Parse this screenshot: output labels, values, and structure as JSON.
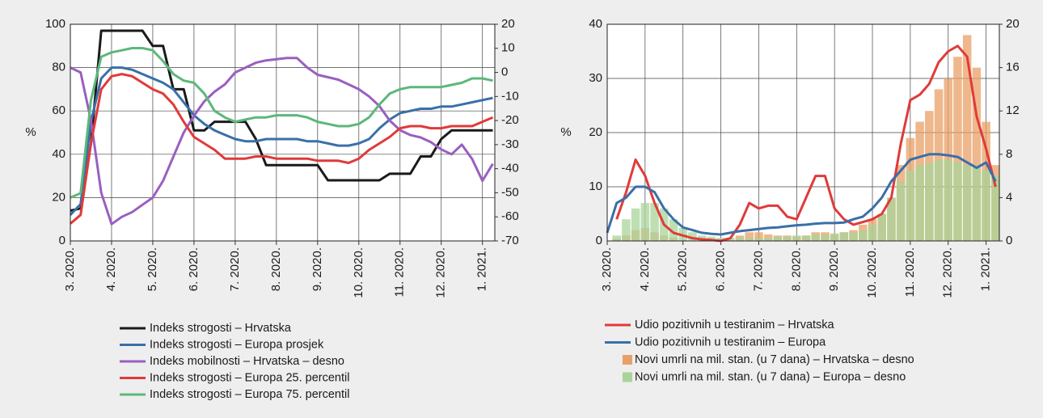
{
  "chart_data": [
    {
      "type": "line",
      "ylabel": "%",
      "ylim": [
        0,
        100
      ],
      "yticks": [
        0,
        20,
        40,
        60,
        80,
        100
      ],
      "y2lim": [
        -70,
        20
      ],
      "y2ticks": [
        -70,
        -60,
        -50,
        -40,
        -30,
        -20,
        -10,
        0,
        10,
        20
      ],
      "xlim": [
        0,
        10.3
      ],
      "grid": true,
      "legend": "bottom",
      "xticks": [
        {
          "value": 0,
          "label": "3. 2020."
        },
        {
          "value": 1,
          "label": "4. 2020."
        },
        {
          "value": 2,
          "label": "5. 2020."
        },
        {
          "value": 3,
          "label": "6. 2020."
        },
        {
          "value": 4,
          "label": "7. 2020."
        },
        {
          "value": 5,
          "label": "8. 2020."
        },
        {
          "value": 6,
          "label": "9. 2020."
        },
        {
          "value": 7,
          "label": "10. 2020."
        },
        {
          "value": 8,
          "label": "11. 2020."
        },
        {
          "value": 9,
          "label": "12. 2020."
        },
        {
          "value": 10,
          "label": "1. 2021."
        }
      ],
      "x": [
        0,
        0.25,
        0.5,
        0.75,
        1,
        1.25,
        1.5,
        1.75,
        2,
        2.25,
        2.5,
        2.75,
        3,
        3.25,
        3.5,
        3.75,
        4,
        4.25,
        4.5,
        4.75,
        5,
        5.25,
        5.5,
        5.75,
        6,
        6.25,
        6.5,
        6.75,
        7,
        7.25,
        7.5,
        7.75,
        8,
        8.25,
        8.5,
        8.75,
        9,
        9.25,
        9.5,
        9.75,
        10,
        10.25
      ],
      "series": [
        {
          "name": "Indeks strogosti – Hrvatska",
          "color": "#1a1a1a",
          "values": [
            14,
            15,
            45,
            97,
            97,
            97,
            97,
            97,
            90,
            90,
            70,
            70,
            51,
            51,
            55,
            55,
            55,
            55,
            47,
            35,
            35,
            35,
            35,
            35,
            35,
            28,
            28,
            28,
            28,
            28,
            28,
            31,
            31,
            31,
            39,
            39,
            47,
            51,
            51,
            51,
            51,
            51
          ]
        },
        {
          "name": "Indeks strogosti – Europa prosjek",
          "color": "#3a6fa8",
          "values": [
            12,
            17,
            55,
            75,
            80,
            80,
            79,
            77,
            75,
            73,
            70,
            64,
            58,
            54,
            51,
            49,
            47,
            46,
            46,
            47,
            47,
            47,
            47,
            46,
            46,
            45,
            44,
            44,
            45,
            47,
            52,
            56,
            59,
            60,
            61,
            61,
            62,
            62,
            63,
            64,
            65,
            66
          ]
        },
        {
          "name": "Indeks mobilnosti – Hrvatska – desno",
          "color": "#9a5fbf",
          "axis": "y2",
          "values": [
            2,
            0,
            -20,
            -50,
            -63,
            -60,
            -58,
            -55,
            -52,
            -45,
            -35,
            -25,
            -18,
            -12,
            -8,
            -5,
            0,
            2,
            4,
            5,
            5.5,
            6,
            6,
            2,
            -1,
            -2,
            -3,
            -5,
            -7,
            -10,
            -14,
            -20,
            -24,
            -26,
            -27,
            -29,
            -32,
            -34,
            -30,
            -36,
            -45,
            -38
          ]
        },
        {
          "name": "Indeks strogosti – Europa 25. percentil",
          "color": "#e03a3a",
          "values": [
            8,
            12,
            45,
            70,
            76,
            77,
            76,
            73,
            70,
            68,
            63,
            55,
            48,
            45,
            42,
            38,
            38,
            38,
            39,
            39,
            38,
            38,
            38,
            38,
            37,
            37,
            37,
            36,
            38,
            42,
            45,
            48,
            52,
            53,
            53,
            52,
            52,
            53,
            53,
            53,
            55,
            57
          ]
        },
        {
          "name": "Indeks strogosti – Europa 75. percentil",
          "color": "#5cb87a",
          "values": [
            20,
            22,
            65,
            85,
            87,
            88,
            89,
            89,
            88,
            83,
            77,
            74,
            73,
            68,
            60,
            57,
            55,
            56,
            57,
            57,
            58,
            58,
            58,
            57,
            55,
            54,
            53,
            53,
            54,
            57,
            63,
            68,
            70,
            71,
            71,
            71,
            71,
            72,
            73,
            75,
            75,
            74
          ]
        }
      ]
    },
    {
      "type": "line",
      "ylabel": "%",
      "ylim": [
        0,
        40
      ],
      "yticks": [
        0,
        10,
        20,
        30,
        40
      ],
      "y2lim": [
        0,
        20
      ],
      "y2ticks": [
        0,
        4,
        8,
        12,
        16,
        20
      ],
      "xlim": [
        0,
        10.35
      ],
      "grid": true,
      "legend": "bottom",
      "xticks": [
        {
          "value": 0,
          "label": "3. 2020."
        },
        {
          "value": 1,
          "label": "4. 2020."
        },
        {
          "value": 2,
          "label": "5. 2020."
        },
        {
          "value": 3,
          "label": "6. 2020."
        },
        {
          "value": 4,
          "label": "7. 2020."
        },
        {
          "value": 5,
          "label": "8. 2020."
        },
        {
          "value": 6,
          "label": "9. 2020."
        },
        {
          "value": 7,
          "label": "10. 2020."
        },
        {
          "value": 8,
          "label": "11. 2020."
        },
        {
          "value": 9,
          "label": "12. 2020."
        },
        {
          "value": 10,
          "label": "1. 2021."
        }
      ],
      "x": [
        0,
        0.25,
        0.5,
        0.75,
        1,
        1.25,
        1.5,
        1.75,
        2,
        2.25,
        2.5,
        2.75,
        3,
        3.25,
        3.5,
        3.75,
        4,
        4.25,
        4.5,
        4.75,
        5,
        5.25,
        5.5,
        5.75,
        6,
        6.25,
        6.5,
        6.75,
        7,
        7.25,
        7.5,
        7.75,
        8,
        8.25,
        8.5,
        8.75,
        9,
        9.25,
        9.5,
        9.75,
        10,
        10.25
      ],
      "series": [
        {
          "name": "Novi umrli  na mil. stan. (u 7 dana) – Hrvatska – desno",
          "type": "bar",
          "axis": "y2",
          "color": "#e9a066",
          "values": [
            0,
            0.2,
            0.5,
            1,
            1.2,
            0.8,
            0.5,
            0.3,
            0.1,
            0,
            0,
            0,
            0,
            0.1,
            0.5,
            0.8,
            0.8,
            0.6,
            0.5,
            0.5,
            0.4,
            0.5,
            0.8,
            0.8,
            0.6,
            0.8,
            1,
            1.5,
            2,
            2.5,
            4,
            7,
            9.5,
            11,
            12,
            14,
            15,
            17,
            19,
            16,
            11,
            7
          ]
        },
        {
          "name": "Novi umrli  na mil. stan. (u 7 dana) – Europa – desno",
          "type": "bar",
          "axis": "y2",
          "color": "#a8d49a",
          "values": [
            0,
            0.5,
            2,
            3,
            3.5,
            3.5,
            3,
            2,
            1.2,
            0.8,
            0.5,
            0.4,
            0.3,
            0.3,
            0.3,
            0.3,
            0.3,
            0.3,
            0.4,
            0.4,
            0.5,
            0.5,
            0.6,
            0.6,
            0.7,
            0.8,
            0.8,
            1,
            1.5,
            2.5,
            4,
            5.5,
            6.5,
            7,
            7.2,
            7.5,
            7.5,
            7.3,
            7,
            7,
            6.5,
            6
          ]
        },
        {
          "name": "Udio pozitivnih u testiranim – Hrvatska",
          "color": "#e03a3a",
          "values": [
            null,
            4,
            9,
            15,
            12,
            7,
            3,
            1.5,
            1,
            0.5,
            0.3,
            0.2,
            0,
            0.5,
            3,
            7,
            6,
            6.5,
            6.5,
            4.5,
            4,
            8,
            12,
            12,
            6,
            4,
            3,
            3.5,
            4,
            5,
            8,
            18,
            26,
            27,
            29,
            33,
            35,
            36,
            34,
            23,
            17,
            10
          ]
        },
        {
          "name": "Udio pozitivnih u testiranim – Europa",
          "color": "#3a6fa8",
          "values": [
            1.5,
            7,
            8,
            10,
            10,
            9,
            6,
            4,
            2.5,
            2,
            1.5,
            1.3,
            1.2,
            1.5,
            1.8,
            2,
            2.2,
            2.4,
            2.5,
            2.7,
            2.9,
            3,
            3.2,
            3.3,
            3.3,
            3.4,
            4,
            4.5,
            6,
            8,
            11,
            13,
            15,
            15.5,
            16,
            16,
            15.8,
            15.5,
            14.5,
            13.5,
            14.5,
            11
          ]
        }
      ]
    }
  ]
}
